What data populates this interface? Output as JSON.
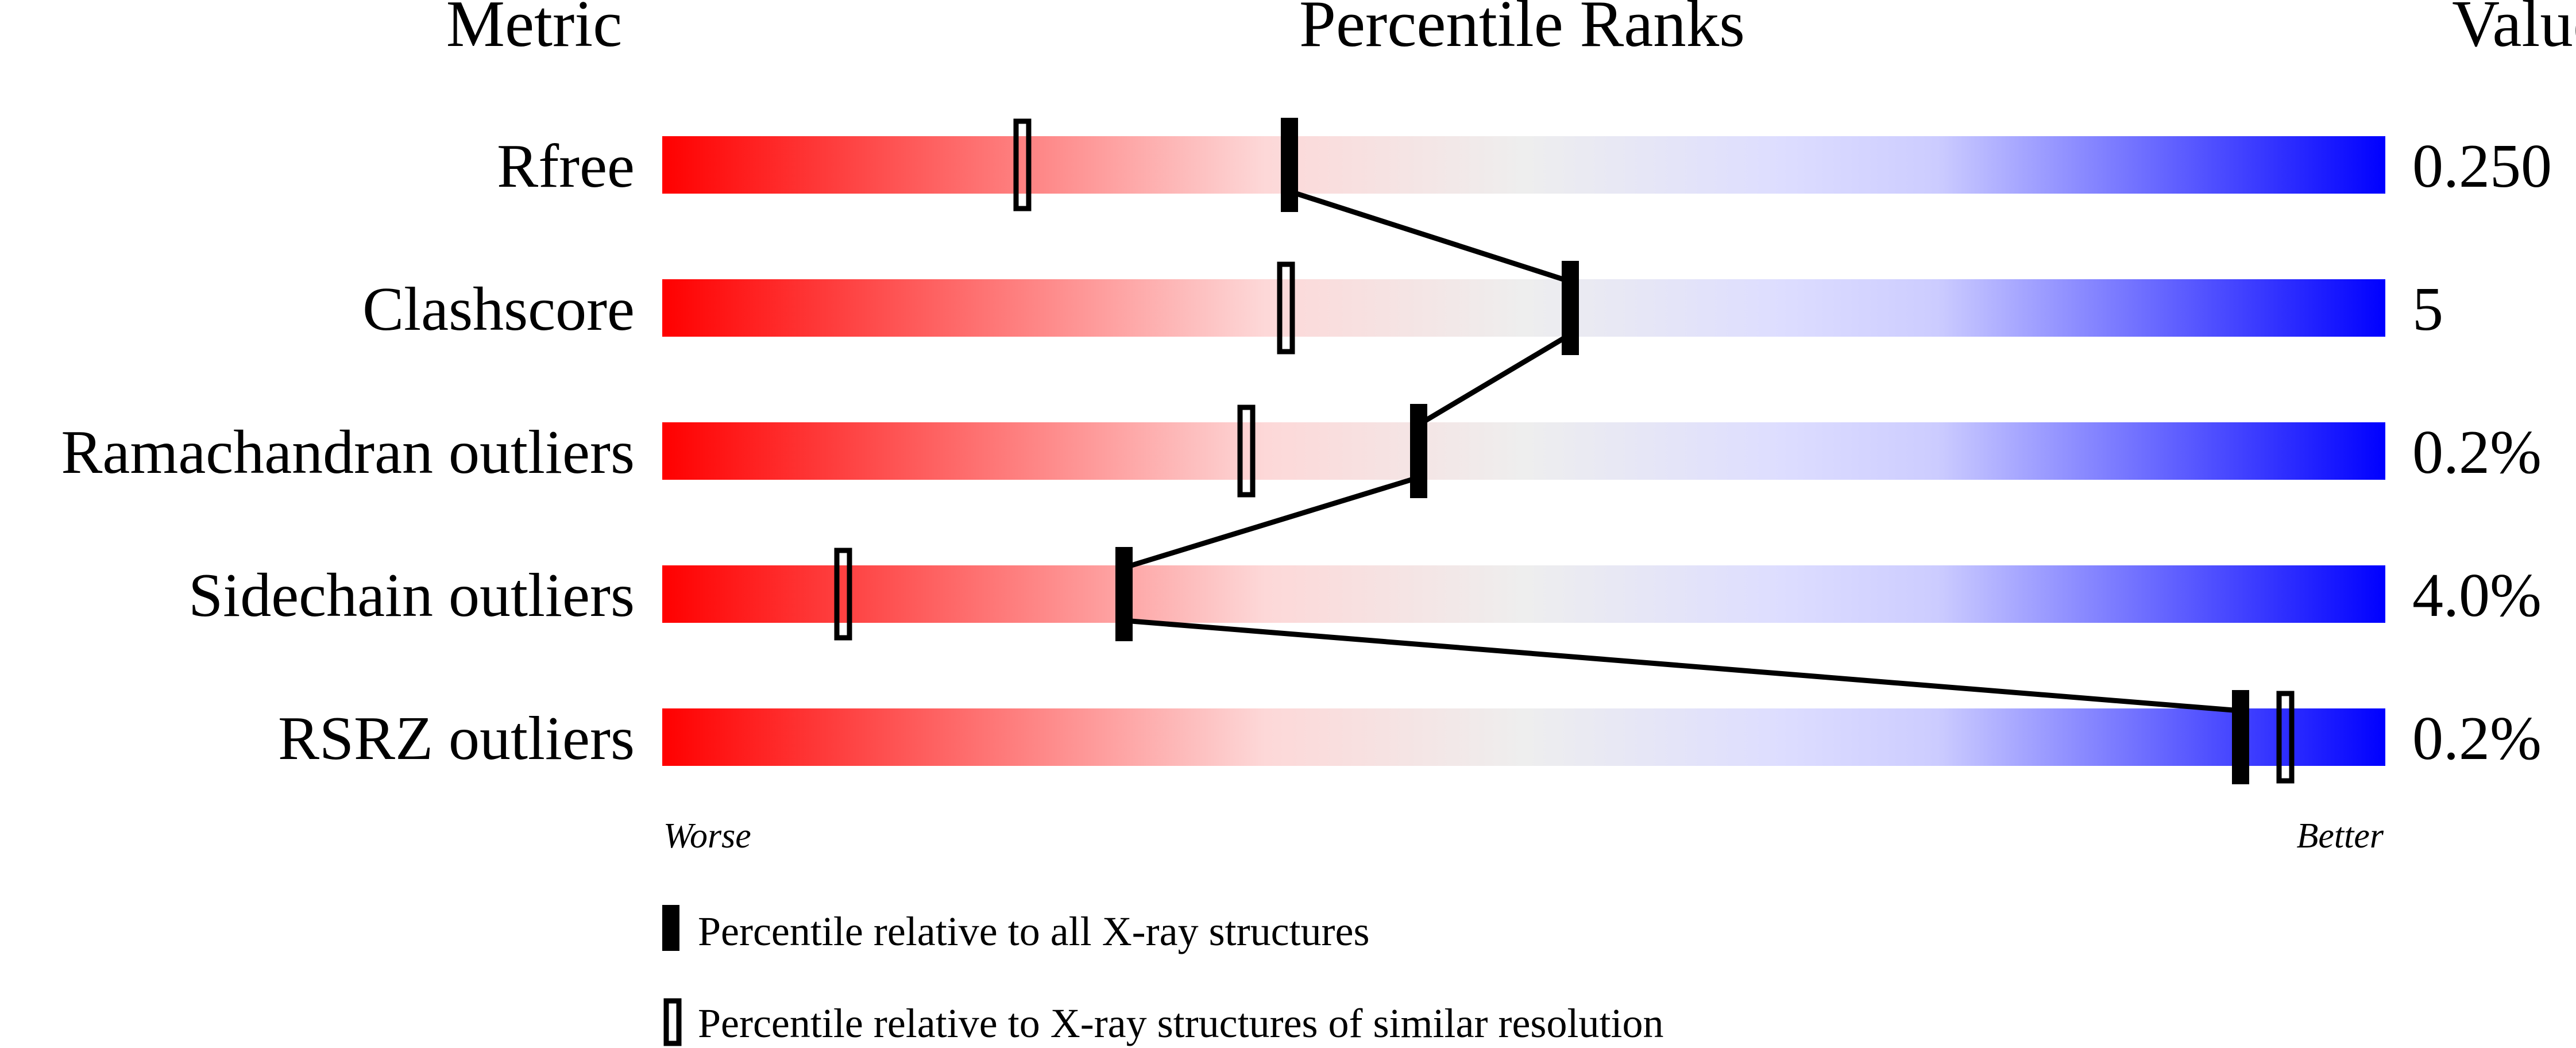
{
  "chart_data": {
    "type": "percentile-bar",
    "headers": {
      "metric": "Metric",
      "ranks": "Percentile Ranks",
      "value": "Value"
    },
    "xlim": [
      0,
      100
    ],
    "axis_ends": {
      "left": "Worse",
      "right": "Better"
    },
    "gradient_colors": [
      "#ff0000",
      "#fdd8d8",
      "#eeeeee",
      "#ddddff",
      "#0000ff"
    ],
    "rows": [
      {
        "metric": "Rfree",
        "value": "0.250",
        "percentile_all": 36.4,
        "percentile_similar": 20.9
      },
      {
        "metric": "Clashscore",
        "value": "5",
        "percentile_all": 52.7,
        "percentile_similar": 36.2
      },
      {
        "metric": "Ramachandran outliers",
        "value": "0.2%",
        "percentile_all": 43.9,
        "percentile_similar": 33.9
      },
      {
        "metric": "Sidechain outliers",
        "value": "4.0%",
        "percentile_all": 26.8,
        "percentile_similar": 10.5
      },
      {
        "metric": "RSRZ outliers",
        "value": "0.2%",
        "percentile_all": 91.6,
        "percentile_similar": 94.2
      }
    ],
    "legend": [
      {
        "marker": "filled",
        "label": "Percentile relative to all X-ray structures"
      },
      {
        "marker": "open",
        "label": "Percentile relative to X-ray structures of similar resolution"
      }
    ]
  }
}
